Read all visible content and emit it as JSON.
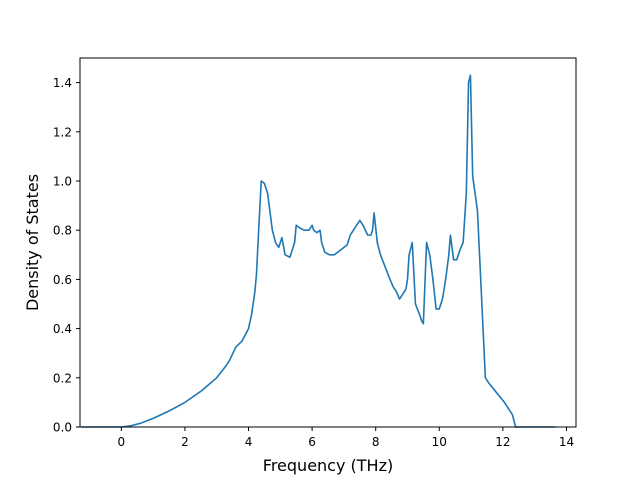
{
  "chart_data": {
    "type": "line",
    "title": "",
    "xlabel": "Frequency (THz)",
    "ylabel": "Density of States",
    "xlim": [
      -1.3,
      14.3
    ],
    "ylim": [
      0.0,
      1.5
    ],
    "xticks": [
      0,
      2,
      4,
      6,
      8,
      10,
      12,
      14
    ],
    "yticks": [
      0.0,
      0.2,
      0.4,
      0.6,
      0.8,
      1.0,
      1.2,
      1.4
    ],
    "xtick_labels": [
      "0",
      "2",
      "4",
      "6",
      "8",
      "10",
      "12",
      "14"
    ],
    "ytick_labels": [
      "0.0",
      "0.2",
      "0.4",
      "0.6",
      "0.8",
      "1.0",
      "1.2",
      "1.4"
    ],
    "grid": false,
    "line_color": "#1f77b4",
    "series": [
      {
        "x": [
          -1.26,
          -0.5,
          0.0,
          0.3,
          0.6,
          1.0,
          1.5,
          2.0,
          2.5,
          3.0,
          3.3,
          3.4,
          3.6,
          3.8,
          3.9,
          4.0,
          4.1,
          4.2,
          4.25,
          4.3,
          4.4,
          4.5,
          4.6,
          4.65,
          4.75,
          4.85,
          4.95,
          5.0,
          5.05,
          5.15,
          5.3,
          5.45,
          5.5,
          5.6,
          5.75,
          5.9,
          6.0,
          6.05,
          6.15,
          6.25,
          6.3,
          6.4,
          6.55,
          6.7,
          6.9,
          7.1,
          7.2,
          7.35,
          7.5,
          7.6,
          7.75,
          7.85,
          7.9,
          7.95,
          8.05,
          8.15,
          8.3,
          8.45,
          8.55,
          8.65,
          8.75,
          8.85,
          8.95,
          9.0,
          9.05,
          9.15,
          9.25,
          9.4,
          9.45,
          9.5,
          9.6,
          9.7,
          9.8,
          9.9,
          10.0,
          10.1,
          10.2,
          10.3,
          10.35,
          10.45,
          10.55,
          10.65,
          10.75,
          10.85,
          10.92,
          10.98,
          11.05,
          11.2,
          11.45,
          11.55,
          11.8,
          12.05,
          12.2,
          12.3,
          12.4,
          12.6,
          13.65
        ],
        "y": [
          0.0,
          0.0,
          0.0,
          0.005,
          0.015,
          0.035,
          0.065,
          0.1,
          0.145,
          0.2,
          0.25,
          0.27,
          0.325,
          0.35,
          0.375,
          0.4,
          0.46,
          0.55,
          0.62,
          0.75,
          1.0,
          0.99,
          0.95,
          0.9,
          0.8,
          0.75,
          0.73,
          0.75,
          0.77,
          0.7,
          0.69,
          0.75,
          0.82,
          0.81,
          0.8,
          0.8,
          0.82,
          0.8,
          0.79,
          0.8,
          0.75,
          0.71,
          0.7,
          0.7,
          0.72,
          0.74,
          0.78,
          0.81,
          0.84,
          0.82,
          0.78,
          0.78,
          0.8,
          0.87,
          0.75,
          0.7,
          0.65,
          0.6,
          0.57,
          0.55,
          0.52,
          0.54,
          0.56,
          0.6,
          0.7,
          0.75,
          0.5,
          0.45,
          0.43,
          0.42,
          0.75,
          0.7,
          0.6,
          0.48,
          0.48,
          0.52,
          0.6,
          0.7,
          0.78,
          0.68,
          0.68,
          0.72,
          0.75,
          0.95,
          1.4,
          1.43,
          1.02,
          0.88,
          0.2,
          0.18,
          0.14,
          0.1,
          0.07,
          0.05,
          0.0,
          0.0,
          0.0
        ]
      }
    ]
  }
}
